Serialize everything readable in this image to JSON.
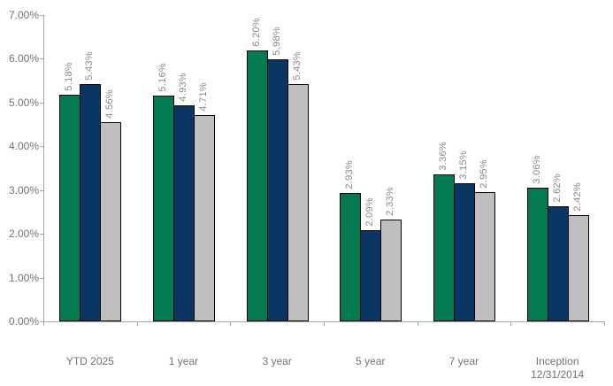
{
  "chart_data": {
    "type": "bar",
    "title": "",
    "categories": [
      "YTD 2025",
      "1 year",
      "3 year",
      "5 year",
      "7 year",
      "Inception\n12/31/2014"
    ],
    "series": [
      {
        "name": "series-green",
        "color": "#047A50",
        "values": [
          5.18,
          5.16,
          6.2,
          2.93,
          3.36,
          3.06
        ],
        "labels": [
          "5.18%",
          "5.16%",
          "6.20%",
          "2.93%",
          "3.36%",
          "3.06%"
        ]
      },
      {
        "name": "series-navy",
        "color": "#0B3663",
        "values": [
          5.43,
          4.93,
          5.98,
          2.09,
          3.15,
          2.62
        ],
        "labels": [
          "5.43%",
          "4.93%",
          "5.98%",
          "2.09%",
          "3.15%",
          "2.62%"
        ]
      },
      {
        "name": "series-gray",
        "color": "#BFBFBF",
        "values": [
          4.56,
          4.71,
          5.43,
          2.33,
          2.95,
          2.42
        ],
        "labels": [
          "4.56%",
          "4.71%",
          "5.43%",
          "2.33%",
          "2.95%",
          "2.42%"
        ]
      }
    ],
    "y_axis": {
      "min": 0,
      "max": 7,
      "step": 1,
      "tick_labels": [
        "0.00%",
        "1.00%",
        "2.00%",
        "3.00%",
        "4.00%",
        "5.00%",
        "6.00%",
        "7.00%"
      ]
    },
    "xlabel": "",
    "ylabel": "",
    "grid": false,
    "legend": false,
    "colors": {
      "bar_outline": "#000000",
      "axis": "#A6A6A6",
      "value_label": "#8A8A8A",
      "tick_label": "#737373",
      "background": "#FFFFFF"
    }
  }
}
